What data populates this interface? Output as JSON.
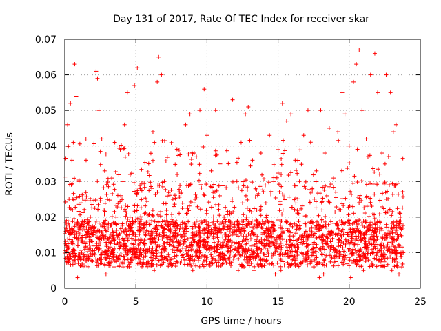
{
  "chart_data": {
    "type": "scatter",
    "title": "Day 131 of 2017, Rate Of TEC Index for receiver skar",
    "xlabel": "GPS time / hours",
    "ylabel": "ROTI / TECUs",
    "xlim": [
      0,
      25
    ],
    "ylim": [
      0,
      0.07
    ],
    "xticks": [
      0,
      5,
      10,
      15,
      20,
      25
    ],
    "yticks": [
      0,
      0.01,
      0.02,
      0.03,
      0.04,
      0.05,
      0.06,
      0.07
    ],
    "xtick_labels": [
      "0",
      "5",
      "10",
      "15",
      "20",
      "25"
    ],
    "ytick_labels": [
      "0",
      "0.01",
      "0.02",
      "0.03",
      "0.04",
      "0.05",
      "0.06",
      "0.07"
    ],
    "grid": true,
    "marker": "+",
    "color": "#ff0000",
    "series": [
      {
        "points": [
          [
            0.1,
            0.012
          ],
          [
            0.3,
            0.025
          ],
          [
            0.5,
            0.036
          ],
          [
            0.7,
            0.063
          ],
          [
            0.8,
            0.054
          ],
          [
            0.2,
            0.046
          ],
          [
            0.4,
            0.052
          ],
          [
            0.6,
            0.041
          ],
          [
            1.0,
            0.03
          ],
          [
            1.2,
            0.018
          ],
          [
            1.5,
            0.036
          ],
          [
            1.8,
            0.02
          ],
          [
            2.0,
            0.015
          ],
          [
            2.2,
            0.061
          ],
          [
            2.3,
            0.059
          ],
          [
            2.4,
            0.05
          ],
          [
            2.6,
            0.042
          ],
          [
            2.8,
            0.033
          ],
          [
            3.0,
            0.025
          ],
          [
            3.3,
            0.031
          ],
          [
            3.6,
            0.02
          ],
          [
            3.9,
            0.039
          ],
          [
            4.2,
            0.046
          ],
          [
            4.4,
            0.055
          ],
          [
            4.6,
            0.032
          ],
          [
            4.9,
            0.057
          ],
          [
            5.1,
            0.062
          ],
          [
            5.3,
            0.028
          ],
          [
            5.6,
            0.021
          ],
          [
            5.9,
            0.035
          ],
          [
            6.2,
            0.044
          ],
          [
            6.5,
            0.058
          ],
          [
            6.6,
            0.065
          ],
          [
            6.8,
            0.06
          ],
          [
            7.0,
            0.03
          ],
          [
            7.3,
            0.018
          ],
          [
            7.6,
            0.025
          ],
          [
            7.9,
            0.032
          ],
          [
            8.2,
            0.027
          ],
          [
            8.5,
            0.046
          ],
          [
            8.8,
            0.049
          ],
          [
            9.1,
            0.038
          ],
          [
            9.5,
            0.05
          ],
          [
            9.8,
            0.056
          ],
          [
            10.0,
            0.043
          ],
          [
            10.3,
            0.033
          ],
          [
            10.6,
            0.05
          ],
          [
            10.9,
            0.026
          ],
          [
            11.2,
            0.02
          ],
          [
            11.5,
            0.035
          ],
          [
            11.8,
            0.053
          ],
          [
            12.1,
            0.03
          ],
          [
            12.4,
            0.041
          ],
          [
            12.7,
            0.049
          ],
          [
            12.9,
            0.051
          ],
          [
            13.2,
            0.036
          ],
          [
            13.5,
            0.022
          ],
          [
            13.8,
            0.038
          ],
          [
            14.1,
            0.029
          ],
          [
            14.4,
            0.043
          ],
          [
            14.7,
            0.03
          ],
          [
            15.0,
            0.039
          ],
          [
            15.3,
            0.052
          ],
          [
            15.6,
            0.047
          ],
          [
            15.9,
            0.049
          ],
          [
            16.2,
            0.036
          ],
          [
            16.5,
            0.03
          ],
          [
            16.8,
            0.043
          ],
          [
            17.1,
            0.05
          ],
          [
            17.4,
            0.028
          ],
          [
            17.7,
            0.033
          ],
          [
            18.0,
            0.05
          ],
          [
            18.3,
            0.038
          ],
          [
            18.6,
            0.045
          ],
          [
            18.9,
            0.031
          ],
          [
            19.2,
            0.044
          ],
          [
            19.5,
            0.055
          ],
          [
            19.7,
            0.049
          ],
          [
            20.0,
            0.04
          ],
          [
            20.3,
            0.058
          ],
          [
            20.5,
            0.063
          ],
          [
            20.7,
            0.067
          ],
          [
            20.9,
            0.05
          ],
          [
            21.2,
            0.042
          ],
          [
            21.5,
            0.06
          ],
          [
            21.8,
            0.066
          ],
          [
            22.0,
            0.055
          ],
          [
            22.3,
            0.038
          ],
          [
            22.6,
            0.06
          ],
          [
            22.9,
            0.055
          ],
          [
            23.1,
            0.044
          ],
          [
            23.3,
            0.046
          ],
          [
            23.6,
            0.02
          ],
          [
            23.8,
            0.01
          ],
          [
            0.0,
            0.017
          ],
          [
            0.5,
            0.009
          ],
          [
            1.1,
            0.008
          ],
          [
            1.7,
            0.011
          ],
          [
            2.5,
            0.007
          ],
          [
            3.4,
            0.01
          ],
          [
            4.1,
            0.006
          ],
          [
            5.0,
            0.009
          ],
          [
            5.8,
            0.011
          ],
          [
            6.9,
            0.008
          ],
          [
            7.7,
            0.01
          ],
          [
            8.6,
            0.009
          ],
          [
            9.4,
            0.012
          ],
          [
            10.2,
            0.007
          ],
          [
            11.0,
            0.009
          ],
          [
            11.9,
            0.011
          ],
          [
            12.6,
            0.006
          ],
          [
            13.3,
            0.005
          ],
          [
            14.0,
            0.008
          ],
          [
            14.8,
            0.004
          ],
          [
            15.7,
            0.009
          ],
          [
            16.6,
            0.007
          ],
          [
            17.5,
            0.006
          ],
          [
            18.2,
            0.004
          ],
          [
            19.1,
            0.009
          ],
          [
            20.1,
            0.003
          ],
          [
            20.8,
            0.008
          ],
          [
            21.6,
            0.007
          ],
          [
            22.4,
            0.009
          ],
          [
            23.0,
            0.005
          ],
          [
            23.5,
            0.004
          ],
          [
            23.7,
            0.006
          ],
          [
            0.9,
            0.003
          ],
          [
            2.9,
            0.004
          ],
          [
            6.3,
            0.005
          ],
          [
            9.0,
            0.005
          ],
          [
            12.2,
            0.005
          ],
          [
            15.2,
            0.005
          ],
          [
            17.9,
            0.003
          ],
          [
            21.0,
            0.005
          ]
        ]
      }
    ]
  }
}
